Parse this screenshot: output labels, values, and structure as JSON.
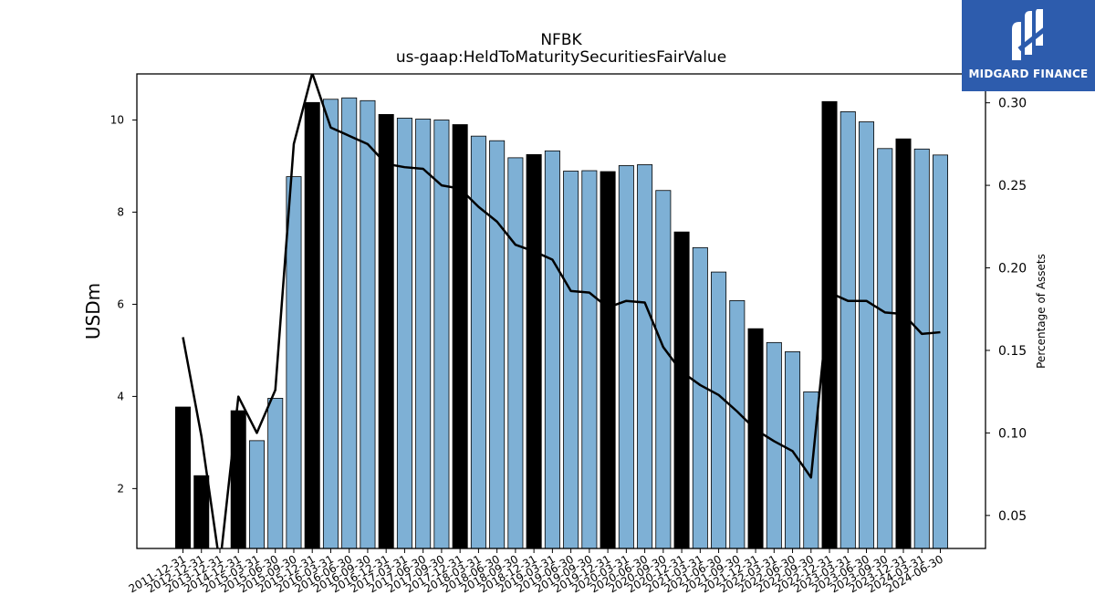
{
  "brand": {
    "name": "MIDGARD FINANCE",
    "bg_color": "#2d5cad",
    "icon": "midgard-logo-icon"
  },
  "chart_data": {
    "type": "bar",
    "title": "NFBK",
    "subtitle": "us-gaap:HeldToMaturitySecuritiesFairValue",
    "ylabel": "USDm",
    "y2label": "Percentage of Assets",
    "ylim": [
      0.7,
      11.0
    ],
    "y2lim": [
      0.03,
      0.3175
    ],
    "yticks": [
      2,
      4,
      6,
      8,
      10
    ],
    "y2ticks": [
      "0.05",
      "0.10",
      "0.15",
      "0.20",
      "0.25",
      "0.30"
    ],
    "bar_color": "#7eb0d5",
    "annual_bar_color": "#000000",
    "line_color": "#000000",
    "categories": [
      "2011-12-31",
      "2012-12-31",
      "2013-12-31",
      "2014-12-31",
      "2015-03-31",
      "2015-06-30",
      "2015-09-30",
      "2015-12-31",
      "2016-03-31",
      "2016-06-30",
      "2016-09-30",
      "2016-12-31",
      "2017-03-31",
      "2017-06-30",
      "2017-09-30",
      "2017-12-31",
      "2018-03-31",
      "2018-06-30",
      "2018-09-30",
      "2018-12-31",
      "2019-03-31",
      "2019-06-30",
      "2019-09-30",
      "2019-12-31",
      "2020-03-31",
      "2020-06-30",
      "2020-09-30",
      "2020-12-31",
      "2021-03-31",
      "2021-06-30",
      "2021-09-30",
      "2021-12-31",
      "2022-03-31",
      "2022-06-30",
      "2022-09-30",
      "2022-12-31",
      "2023-03-31",
      "2023-06-30",
      "2023-09-30",
      "2023-12-31",
      "2024-03-31",
      "2024-06-30"
    ],
    "series": [
      {
        "type": "bar",
        "values": [
          3.77,
          2.28,
          0.55,
          3.69,
          3.04,
          3.96,
          8.77,
          10.38,
          10.45,
          10.48,
          10.42,
          10.12,
          10.04,
          10.02,
          10.0,
          9.9,
          9.65,
          9.55,
          9.18,
          9.25,
          9.33,
          8.89,
          8.9,
          8.88,
          9.01,
          9.03,
          8.47,
          7.57,
          7.23,
          6.7,
          6.08,
          5.47,
          5.17,
          4.97,
          4.1,
          10.4,
          10.18,
          9.96,
          9.38,
          9.59,
          9.37,
          9.24
        ],
        "annual": [
          true,
          true,
          true,
          true,
          false,
          false,
          false,
          true,
          false,
          false,
          false,
          true,
          false,
          false,
          false,
          true,
          false,
          false,
          false,
          true,
          false,
          false,
          false,
          true,
          false,
          false,
          false,
          true,
          false,
          false,
          false,
          true,
          false,
          false,
          false,
          true,
          false,
          false,
          false,
          true,
          false,
          false
        ]
      },
      {
        "type": "line",
        "axis": "right",
        "values": [
          0.158,
          0.098,
          0.02,
          0.122,
          0.1,
          0.126,
          0.275,
          0.318,
          0.285,
          0.28,
          0.275,
          0.263,
          0.261,
          0.26,
          0.25,
          0.248,
          0.237,
          0.228,
          0.214,
          0.21,
          0.205,
          0.186,
          0.185,
          0.176,
          0.18,
          0.179,
          0.152,
          0.137,
          0.129,
          0.123,
          0.113,
          0.102,
          0.095,
          0.089,
          0.073,
          0.185,
          0.18,
          0.18,
          0.173,
          0.172,
          0.16,
          0.161
        ]
      }
    ]
  }
}
